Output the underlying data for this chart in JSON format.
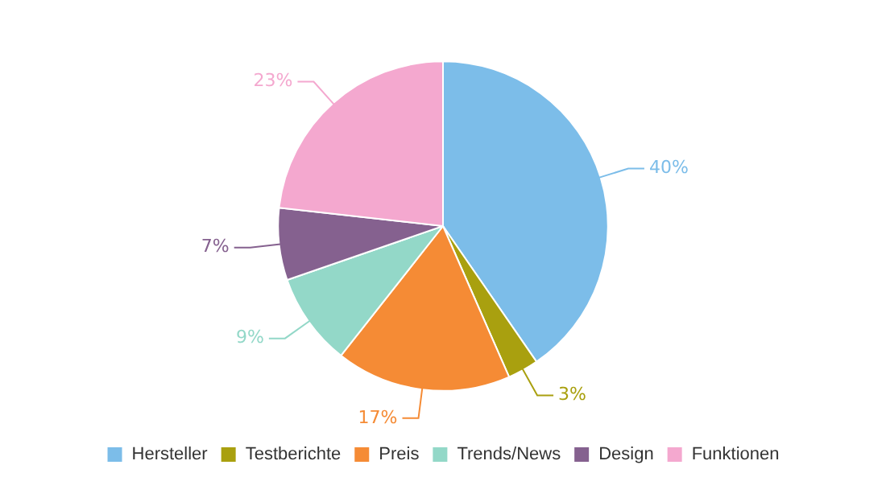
{
  "chart_data": {
    "type": "pie",
    "categories": [
      "Hersteller",
      "Testberichte",
      "Preis",
      "Trends/News",
      "Design",
      "Funktionen"
    ],
    "values": [
      40,
      3,
      17,
      9,
      7,
      23
    ],
    "colors": [
      "#7cbde9",
      "#a9a00f",
      "#f58b35",
      "#93d8c8",
      "#85618f",
      "#f4a8cf"
    ],
    "value_labels": [
      "40%",
      "3%",
      "17%",
      "9%",
      "7%",
      "23%"
    ],
    "legend": "bottom"
  }
}
